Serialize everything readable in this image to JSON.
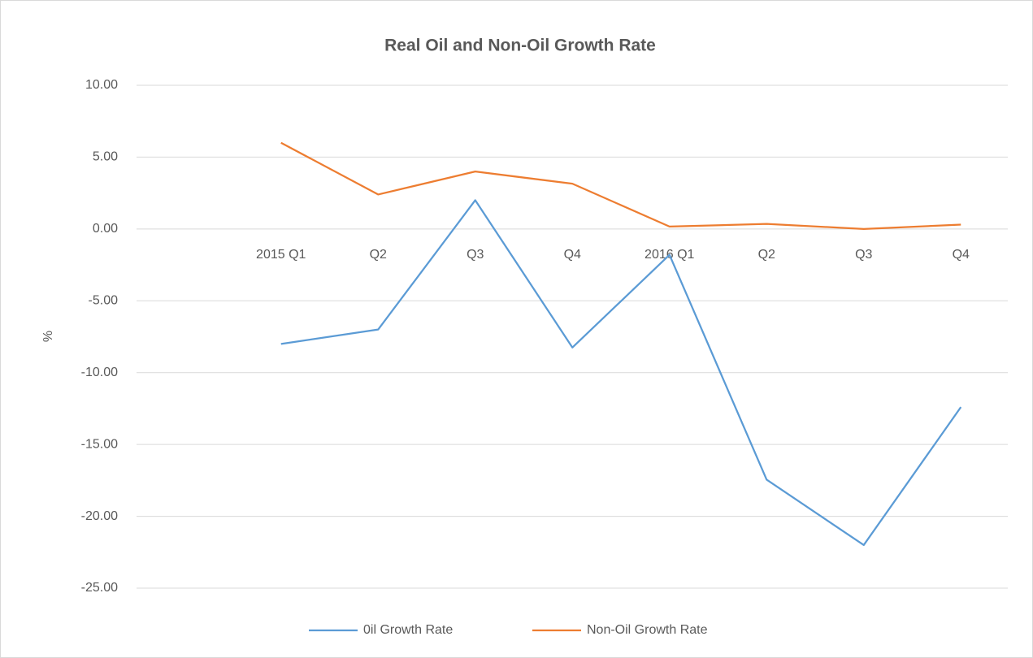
{
  "chart_data": {
    "type": "line",
    "title": "Real Oil and Non-Oil  Growth Rate",
    "y_label": "%",
    "categories": [
      "2015 Q1",
      "Q2",
      "Q3",
      "Q4",
      "2016 Q1",
      "Q2",
      "Q3",
      "Q4"
    ],
    "series": [
      {
        "name": "0il Growth Rate",
        "color": "#5b9bd5",
        "values": [
          -8.0,
          -7.0,
          2.0,
          -8.25,
          -1.8,
          -17.45,
          -22.0,
          -12.4
        ]
      },
      {
        "name": "Non-Oil Growth Rate",
        "color": "#ed7d31",
        "values": [
          6.0,
          2.4,
          4.0,
          3.15,
          0.17,
          0.35,
          0.0,
          0.3
        ]
      }
    ],
    "ylim": [
      -25,
      10
    ],
    "yticks": [
      {
        "value": 10,
        "label": "10.00"
      },
      {
        "value": 5,
        "label": "5.00"
      },
      {
        "value": 0,
        "label": "0.00"
      },
      {
        "value": -5,
        "label": "-5.00"
      },
      {
        "value": -10,
        "label": "-10.00"
      },
      {
        "value": -15,
        "label": "-15.00"
      },
      {
        "value": -20,
        "label": "-20.00"
      },
      {
        "value": -25,
        "label": "-25.00"
      }
    ],
    "grid": true,
    "legend": "bottom"
  }
}
